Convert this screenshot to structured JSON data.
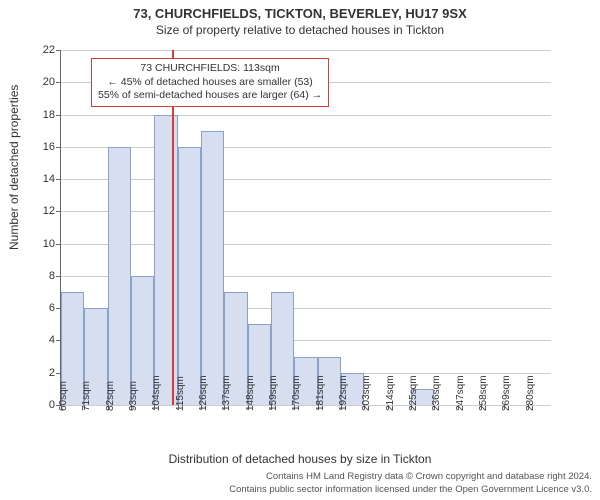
{
  "title_line1": "73, CHURCHFIELDS, TICKTON, BEVERLEY, HU17 9SX",
  "title_line2": "Size of property relative to detached houses in Tickton",
  "ylabel": "Number of detached properties",
  "xlabel": "Distribution of detached houses by size in Tickton",
  "footer_line1": "Contains HM Land Registry data © Crown copyright and database right 2024.",
  "footer_line2": "Contains public sector information licensed under the Open Government Licence v3.0.",
  "chart": {
    "type": "histogram",
    "background_color": "#ffffff",
    "grid_color": "#cccccc",
    "axis_color": "#666666",
    "bar_fill": "#d6deef",
    "bar_stroke": "#8da2c9",
    "ylim": [
      0,
      22
    ],
    "ytick_step": 2,
    "xticks": [
      {
        "x": 60,
        "label": "60sqm"
      },
      {
        "x": 71,
        "label": "71sqm"
      },
      {
        "x": 82,
        "label": "82sqm"
      },
      {
        "x": 93,
        "label": "93sqm"
      },
      {
        "x": 104,
        "label": "104sqm"
      },
      {
        "x": 115,
        "label": "115sqm"
      },
      {
        "x": 126,
        "label": "126sqm"
      },
      {
        "x": 137,
        "label": "137sqm"
      },
      {
        "x": 148,
        "label": "148sqm"
      },
      {
        "x": 159,
        "label": "159sqm"
      },
      {
        "x": 170,
        "label": "170sqm"
      },
      {
        "x": 181,
        "label": "181sqm"
      },
      {
        "x": 192,
        "label": "192sqm"
      },
      {
        "x": 203,
        "label": "203sqm"
      },
      {
        "x": 214,
        "label": "214sqm"
      },
      {
        "x": 225,
        "label": "225sqm"
      },
      {
        "x": 236,
        "label": "236sqm"
      },
      {
        "x": 247,
        "label": "247sqm"
      },
      {
        "x": 258,
        "label": "258sqm"
      },
      {
        "x": 269,
        "label": "269sqm"
      },
      {
        "x": 280,
        "label": "280sqm"
      }
    ],
    "xlim": [
      60,
      291
    ],
    "bars": [
      {
        "x0": 60,
        "x1": 71,
        "value": 7
      },
      {
        "x0": 71,
        "x1": 82,
        "value": 6
      },
      {
        "x0": 82,
        "x1": 93,
        "value": 16
      },
      {
        "x0": 93,
        "x1": 104,
        "value": 8
      },
      {
        "x0": 104,
        "x1": 115,
        "value": 18
      },
      {
        "x0": 115,
        "x1": 126,
        "value": 16
      },
      {
        "x0": 126,
        "x1": 137,
        "value": 17
      },
      {
        "x0": 137,
        "x1": 148,
        "value": 7
      },
      {
        "x0": 148,
        "x1": 159,
        "value": 5
      },
      {
        "x0": 159,
        "x1": 170,
        "value": 7
      },
      {
        "x0": 170,
        "x1": 181,
        "value": 3
      },
      {
        "x0": 181,
        "x1": 192,
        "value": 3
      },
      {
        "x0": 192,
        "x1": 203,
        "value": 2
      },
      {
        "x0": 203,
        "x1": 214,
        "value": 0
      },
      {
        "x0": 214,
        "x1": 225,
        "value": 0
      },
      {
        "x0": 225,
        "x1": 236,
        "value": 1
      },
      {
        "x0": 236,
        "x1": 247,
        "value": 0
      },
      {
        "x0": 247,
        "x1": 258,
        "value": 0
      },
      {
        "x0": 258,
        "x1": 269,
        "value": 0
      },
      {
        "x0": 269,
        "x1": 280,
        "value": 0
      }
    ],
    "reference_line": {
      "x": 113,
      "color": "#d43f3a",
      "width": 2
    },
    "annotation": {
      "border_color": "#d43f3a",
      "line1": "73 CHURCHFIELDS: 113sqm",
      "line2": "← 45% of detached houses are smaller (53)",
      "line3": "55% of semi-detached houses are larger (64) →"
    }
  }
}
